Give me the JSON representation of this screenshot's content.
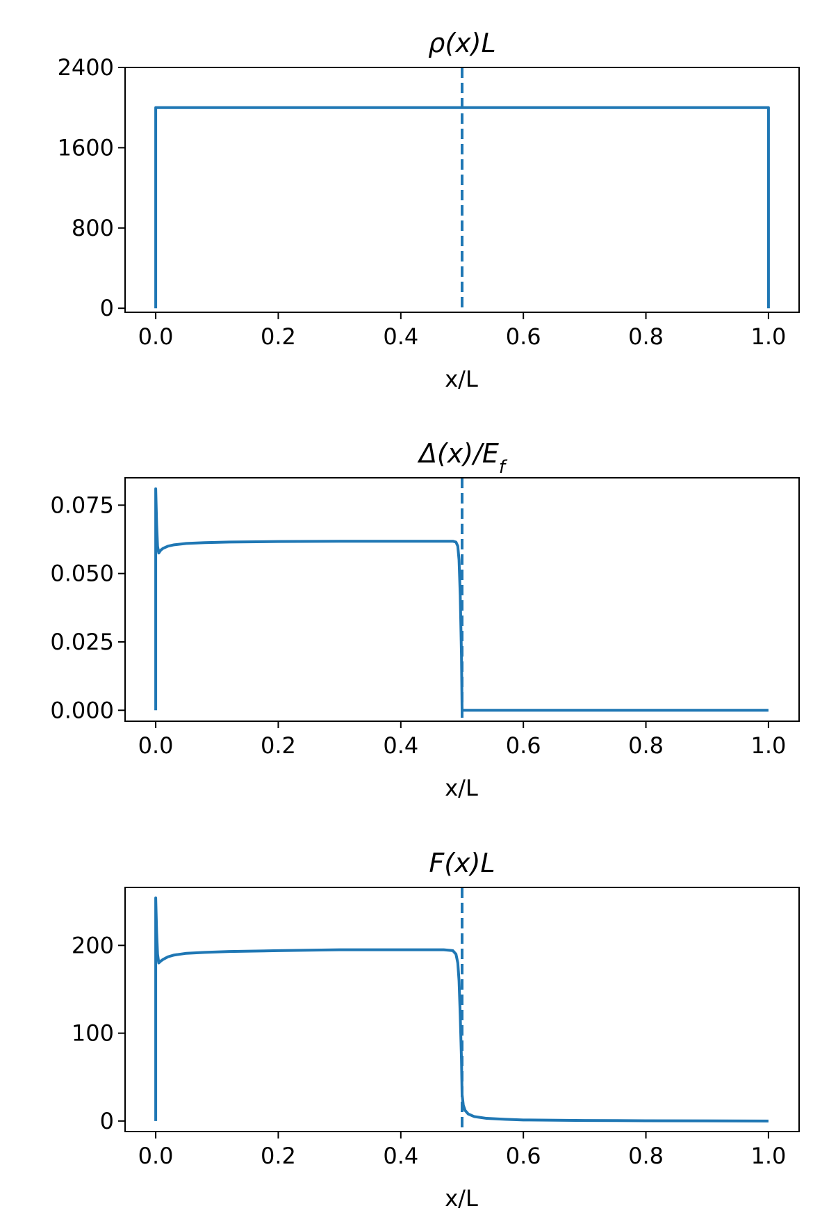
{
  "chart_data": [
    {
      "type": "line",
      "title": "ρ(x)L",
      "xlabel": "x/L",
      "ylabel": "",
      "xlim": [
        -0.05,
        1.05
      ],
      "ylim": [
        -40,
        2400
      ],
      "xticks": [
        0.0,
        0.2,
        0.4,
        0.6,
        0.8,
        1.0
      ],
      "xtick_labels": [
        "0.0",
        "0.2",
        "0.4",
        "0.6",
        "0.8",
        "1.0"
      ],
      "yticks": [
        0,
        800,
        1600,
        2400
      ],
      "ytick_labels": [
        "0",
        "800",
        "1600",
        "2400"
      ],
      "grid": false,
      "vline": {
        "x": 0.5,
        "style": "dashed",
        "color": "#1f77b4"
      },
      "series": [
        {
          "x": [
            0.0,
            0.0,
            1.0,
            1.0
          ],
          "y": [
            0,
            2000,
            2000,
            0
          ],
          "color": "#1f77b4"
        }
      ]
    },
    {
      "type": "line",
      "title": "Δ(x)/E",
      "title_subscript": "f",
      "xlabel": "x/L",
      "ylabel": "",
      "xlim": [
        -0.05,
        1.05
      ],
      "ylim": [
        -0.004,
        0.085
      ],
      "xticks": [
        0.0,
        0.2,
        0.4,
        0.6,
        0.8,
        1.0
      ],
      "xtick_labels": [
        "0.0",
        "0.2",
        "0.4",
        "0.6",
        "0.8",
        "1.0"
      ],
      "yticks": [
        0.0,
        0.025,
        0.05,
        0.075
      ],
      "ytick_labels": [
        "0.000",
        "0.025",
        "0.050",
        "0.075"
      ],
      "grid": false,
      "vline": {
        "x": 0.5,
        "style": "dashed",
        "color": "#1f77b4"
      },
      "series": [
        {
          "x": [
            0.0,
            0.0,
            0.0015,
            0.003,
            0.005,
            0.008,
            0.012,
            0.02,
            0.03,
            0.05,
            0.08,
            0.12,
            0.2,
            0.3,
            0.4,
            0.47,
            0.485,
            0.49,
            0.493,
            0.495,
            0.497,
            0.499,
            0.5,
            0.501,
            1.0
          ],
          "y": [
            0.0,
            0.081,
            0.068,
            0.06,
            0.0575,
            0.0585,
            0.0592,
            0.06,
            0.0605,
            0.061,
            0.0613,
            0.0615,
            0.0617,
            0.0618,
            0.0618,
            0.0618,
            0.0618,
            0.0615,
            0.06,
            0.055,
            0.042,
            0.02,
            0.0,
            0.0,
            0.0
          ],
          "color": "#1f77b4"
        }
      ]
    },
    {
      "type": "line",
      "title": "F(x)L",
      "xlabel": "x/L",
      "ylabel": "",
      "xlim": [
        -0.05,
        1.05
      ],
      "ylim": [
        -12,
        266
      ],
      "xticks": [
        0.0,
        0.2,
        0.4,
        0.6,
        0.8,
        1.0
      ],
      "xtick_labels": [
        "0.0",
        "0.2",
        "0.4",
        "0.6",
        "0.8",
        "1.0"
      ],
      "yticks": [
        0,
        100,
        200
      ],
      "ytick_labels": [
        "0",
        "100",
        "200"
      ],
      "grid": false,
      "vline": {
        "x": 0.5,
        "style": "dashed",
        "color": "#1f77b4"
      },
      "series": [
        {
          "x": [
            0.0,
            0.0,
            0.0015,
            0.003,
            0.005,
            0.008,
            0.012,
            0.02,
            0.03,
            0.05,
            0.08,
            0.12,
            0.2,
            0.3,
            0.4,
            0.47,
            0.485,
            0.49,
            0.493,
            0.495,
            0.497,
            0.499,
            0.5,
            0.502,
            0.505,
            0.51,
            0.52,
            0.54,
            0.57,
            0.6,
            0.7,
            0.8,
            0.9,
            1.0
          ],
          "y": [
            0,
            254,
            215,
            190,
            180,
            182,
            184,
            187,
            189,
            191,
            192,
            193,
            194,
            195,
            195,
            195,
            194,
            190,
            180,
            160,
            120,
            70,
            30,
            18,
            12,
            8,
            5,
            3,
            2,
            1.2,
            0.6,
            0.3,
            0.15,
            0
          ],
          "color": "#1f77b4"
        }
      ]
    }
  ]
}
